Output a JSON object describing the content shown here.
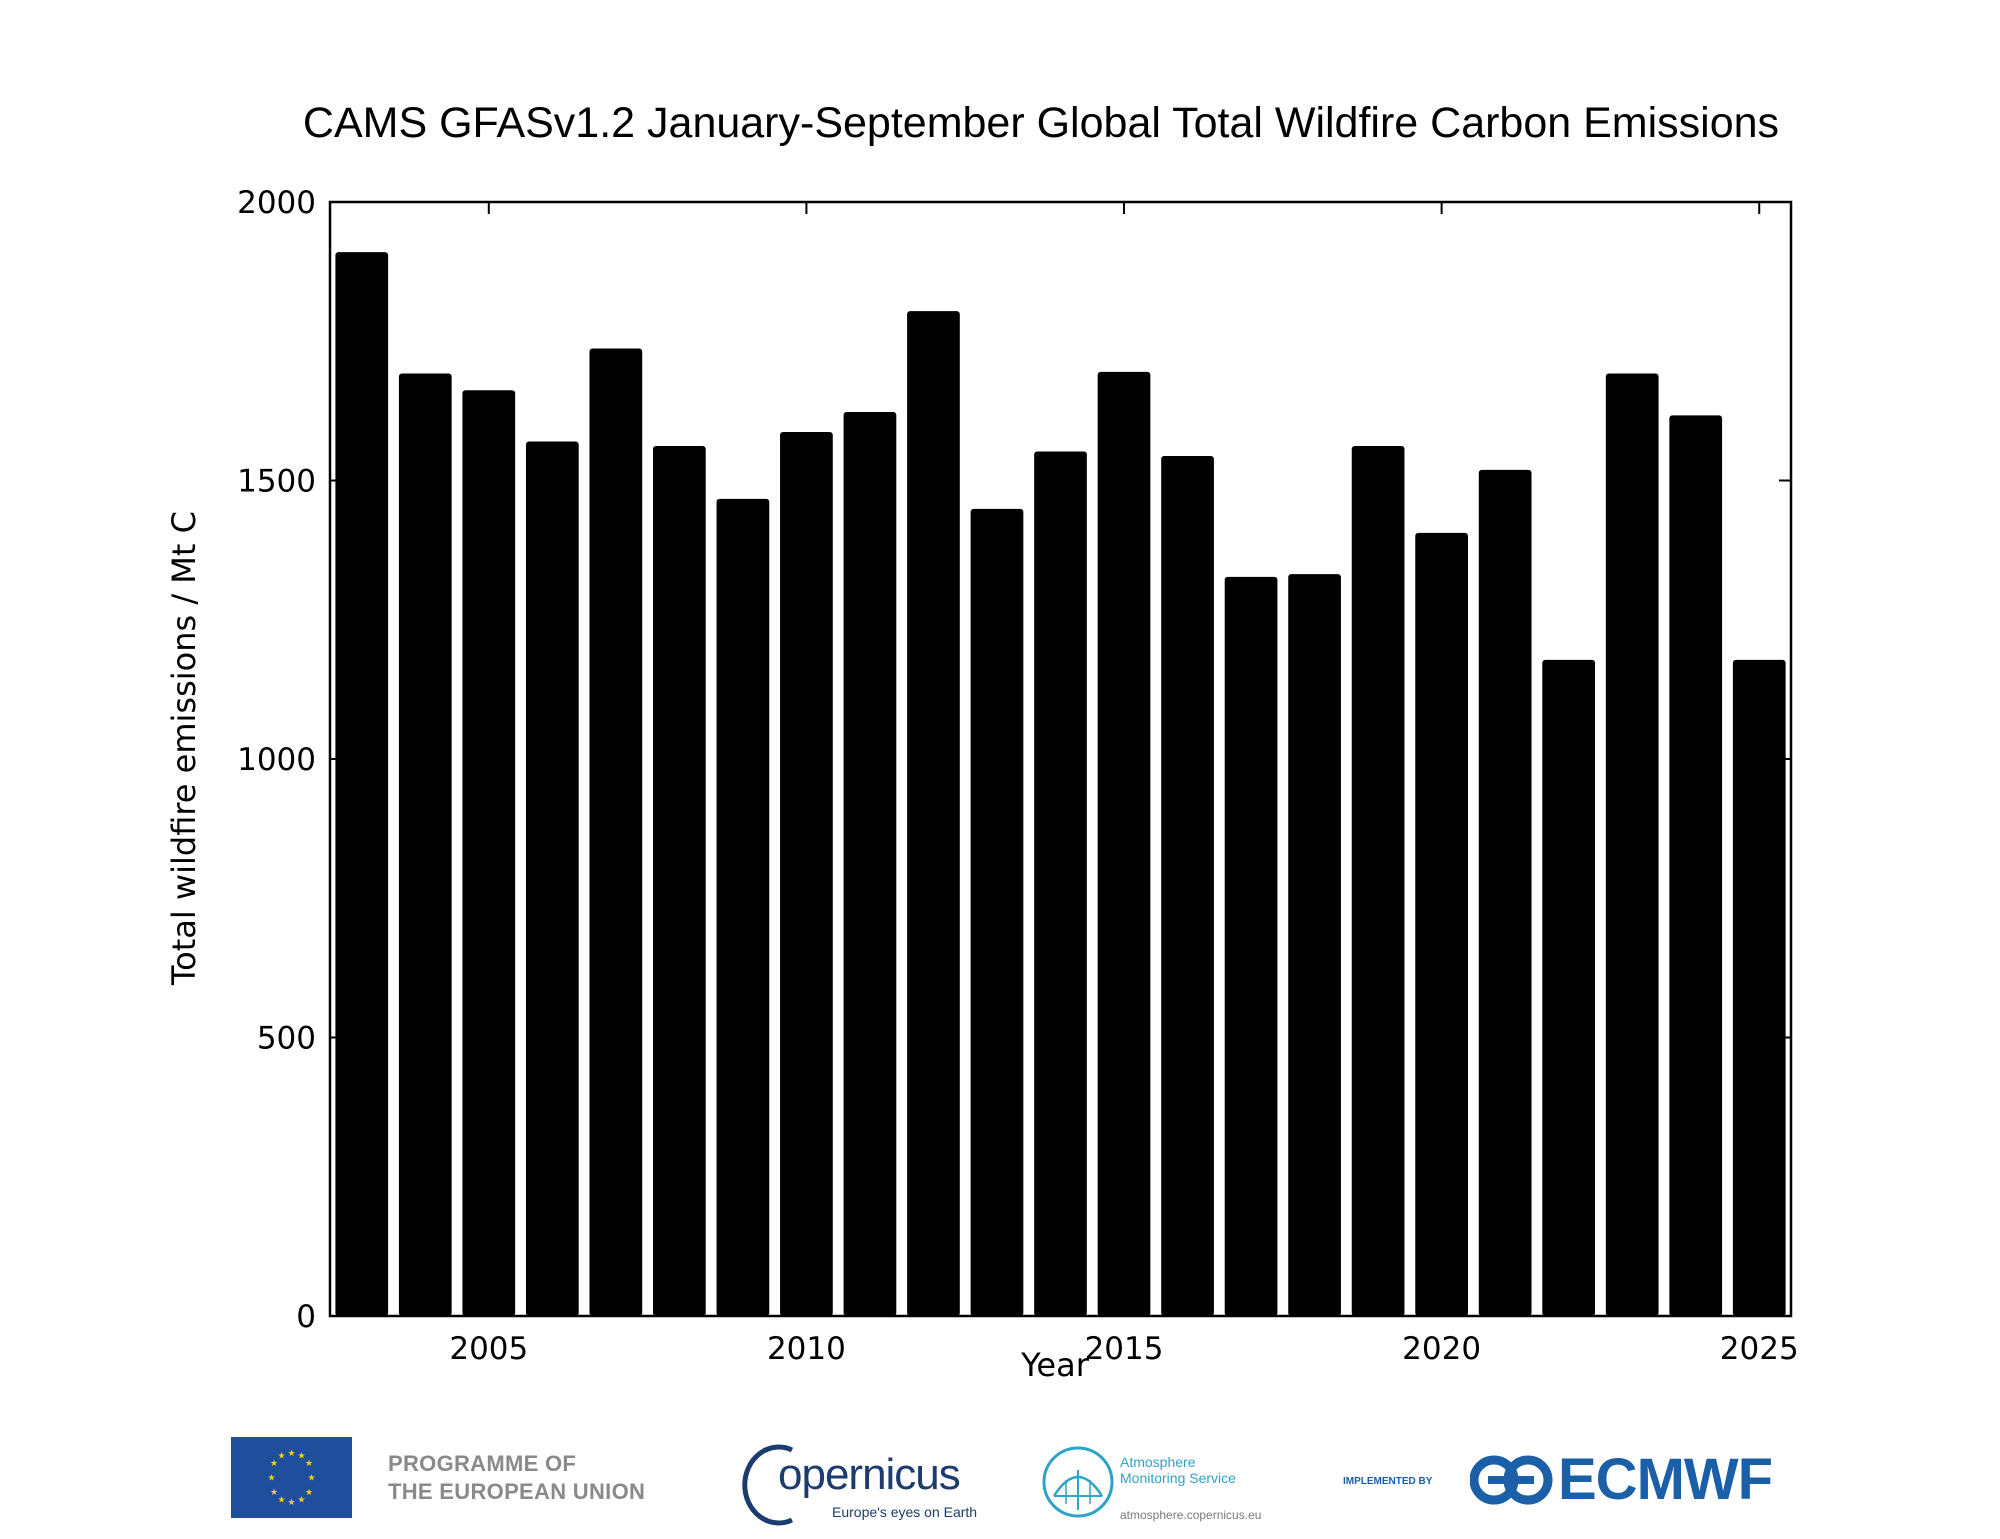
{
  "chart_data": {
    "type": "bar",
    "title": "CAMS GFASv1.2 January-September Global Total Wildfire Carbon Emissions",
    "xlabel": "Year",
    "ylabel": "Total wildfire emissions / Mt C",
    "categories": [
      2003,
      2004,
      2005,
      2006,
      2007,
      2008,
      2009,
      2010,
      2011,
      2012,
      2013,
      2014,
      2015,
      2016,
      2017,
      2018,
      2019,
      2020,
      2021,
      2022,
      2023,
      2024,
      2025
    ],
    "values": [
      1910,
      1692,
      1662,
      1570,
      1737,
      1562,
      1467,
      1587,
      1623,
      1804,
      1449,
      1552,
      1695,
      1544,
      1327,
      1332,
      1562,
      1406,
      1519,
      1178,
      1692,
      1617,
      1178
    ],
    "xlim": [
      2002.5,
      2025.5
    ],
    "ylim": [
      0,
      2000
    ],
    "xticks": [
      2005,
      2010,
      2015,
      2020,
      2025
    ],
    "yticks": [
      0,
      500,
      1000,
      1500,
      2000
    ],
    "bar_color": "#000000",
    "grid": false,
    "legend": "none"
  },
  "footer": {
    "eu_line1": "PROGRAMME OF",
    "eu_line2": "THE EUROPEAN UNION",
    "copernicus": "opernicus",
    "copernicus_tagline": "Europe's eyes on Earth",
    "cams_line1": "Atmosphere",
    "cams_line2": "Monitoring Service",
    "cams_url": "atmosphere.copernicus.eu",
    "implemented_by": "IMPLEMENTED BY",
    "ecmwf": "ECMWF"
  }
}
